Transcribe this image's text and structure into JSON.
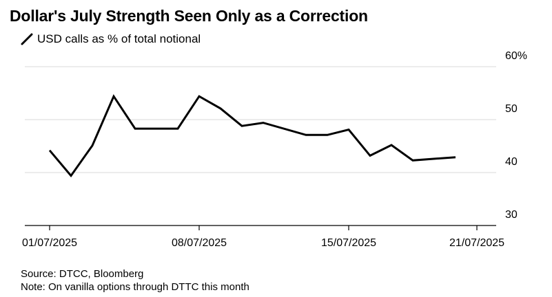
{
  "title": "Dollar's July Strength Seen Only as a Correction",
  "footer": {
    "source": "Source: DTCC, Bloomberg",
    "note": "Note: On vanilla options through DTTC this month"
  },
  "colors": {
    "line": "#000000",
    "grid": "#d9d9d9",
    "axis": "#000000",
    "text": "#000000"
  },
  "chart_data": {
    "type": "line",
    "title": "Dollar's July Strength Seen Only as a Correction",
    "xlabel": "",
    "ylabel": "",
    "ylim": [
      30,
      60
    ],
    "yticks": [
      30,
      40,
      50,
      60
    ],
    "ytick_labels": [
      "30",
      "40",
      "50",
      "60%"
    ],
    "y_axis_side": "right",
    "xlim": [
      "2025-07-01",
      "2025-07-22"
    ],
    "xticks": [
      "2025-07-01",
      "2025-07-08",
      "2025-07-15",
      "2025-07-21"
    ],
    "xtick_labels": [
      "01/07/2025",
      "08/07/2025",
      "15/07/2025",
      "21/07/2025"
    ],
    "grid": true,
    "legend": "top-left",
    "series": [
      {
        "name": "USD calls as % of total notional",
        "x": [
          "2025-07-01",
          "2025-07-02",
          "2025-07-03",
          "2025-07-04",
          "2025-07-05",
          "2025-07-07",
          "2025-07-08",
          "2025-07-09",
          "2025-07-10",
          "2025-07-11",
          "2025-07-13",
          "2025-07-14",
          "2025-07-15",
          "2025-07-16",
          "2025-07-17",
          "2025-07-18",
          "2025-07-20"
        ],
        "values": [
          44.2,
          39.4,
          45.1,
          54.4,
          48.3,
          48.3,
          54.4,
          52.1,
          48.8,
          49.4,
          47.1,
          47.1,
          48.1,
          43.2,
          45.2,
          42.3,
          42.9
        ]
      }
    ]
  }
}
